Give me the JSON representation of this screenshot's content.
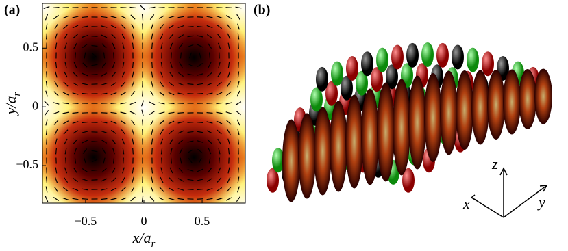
{
  "chart_data": {
    "type": "heatmap",
    "panel_label": "(a)",
    "xlabel": "x/a_r",
    "ylabel": "y/a_r",
    "xlim": [
      -0.87,
      0.87
    ],
    "ylim": [
      -0.82,
      0.88
    ],
    "xticks": [
      {
        "value": -0.5,
        "label": "−0.5"
      },
      0,
      0.5
    ],
    "yticks": [
      {
        "value": -0.5,
        "label": "−0.5"
      },
      0,
      0.5
    ]
  },
  "panel_b": {
    "label": "(b)",
    "axes": {
      "z": "z",
      "x": "x",
      "y": "y"
    }
  }
}
